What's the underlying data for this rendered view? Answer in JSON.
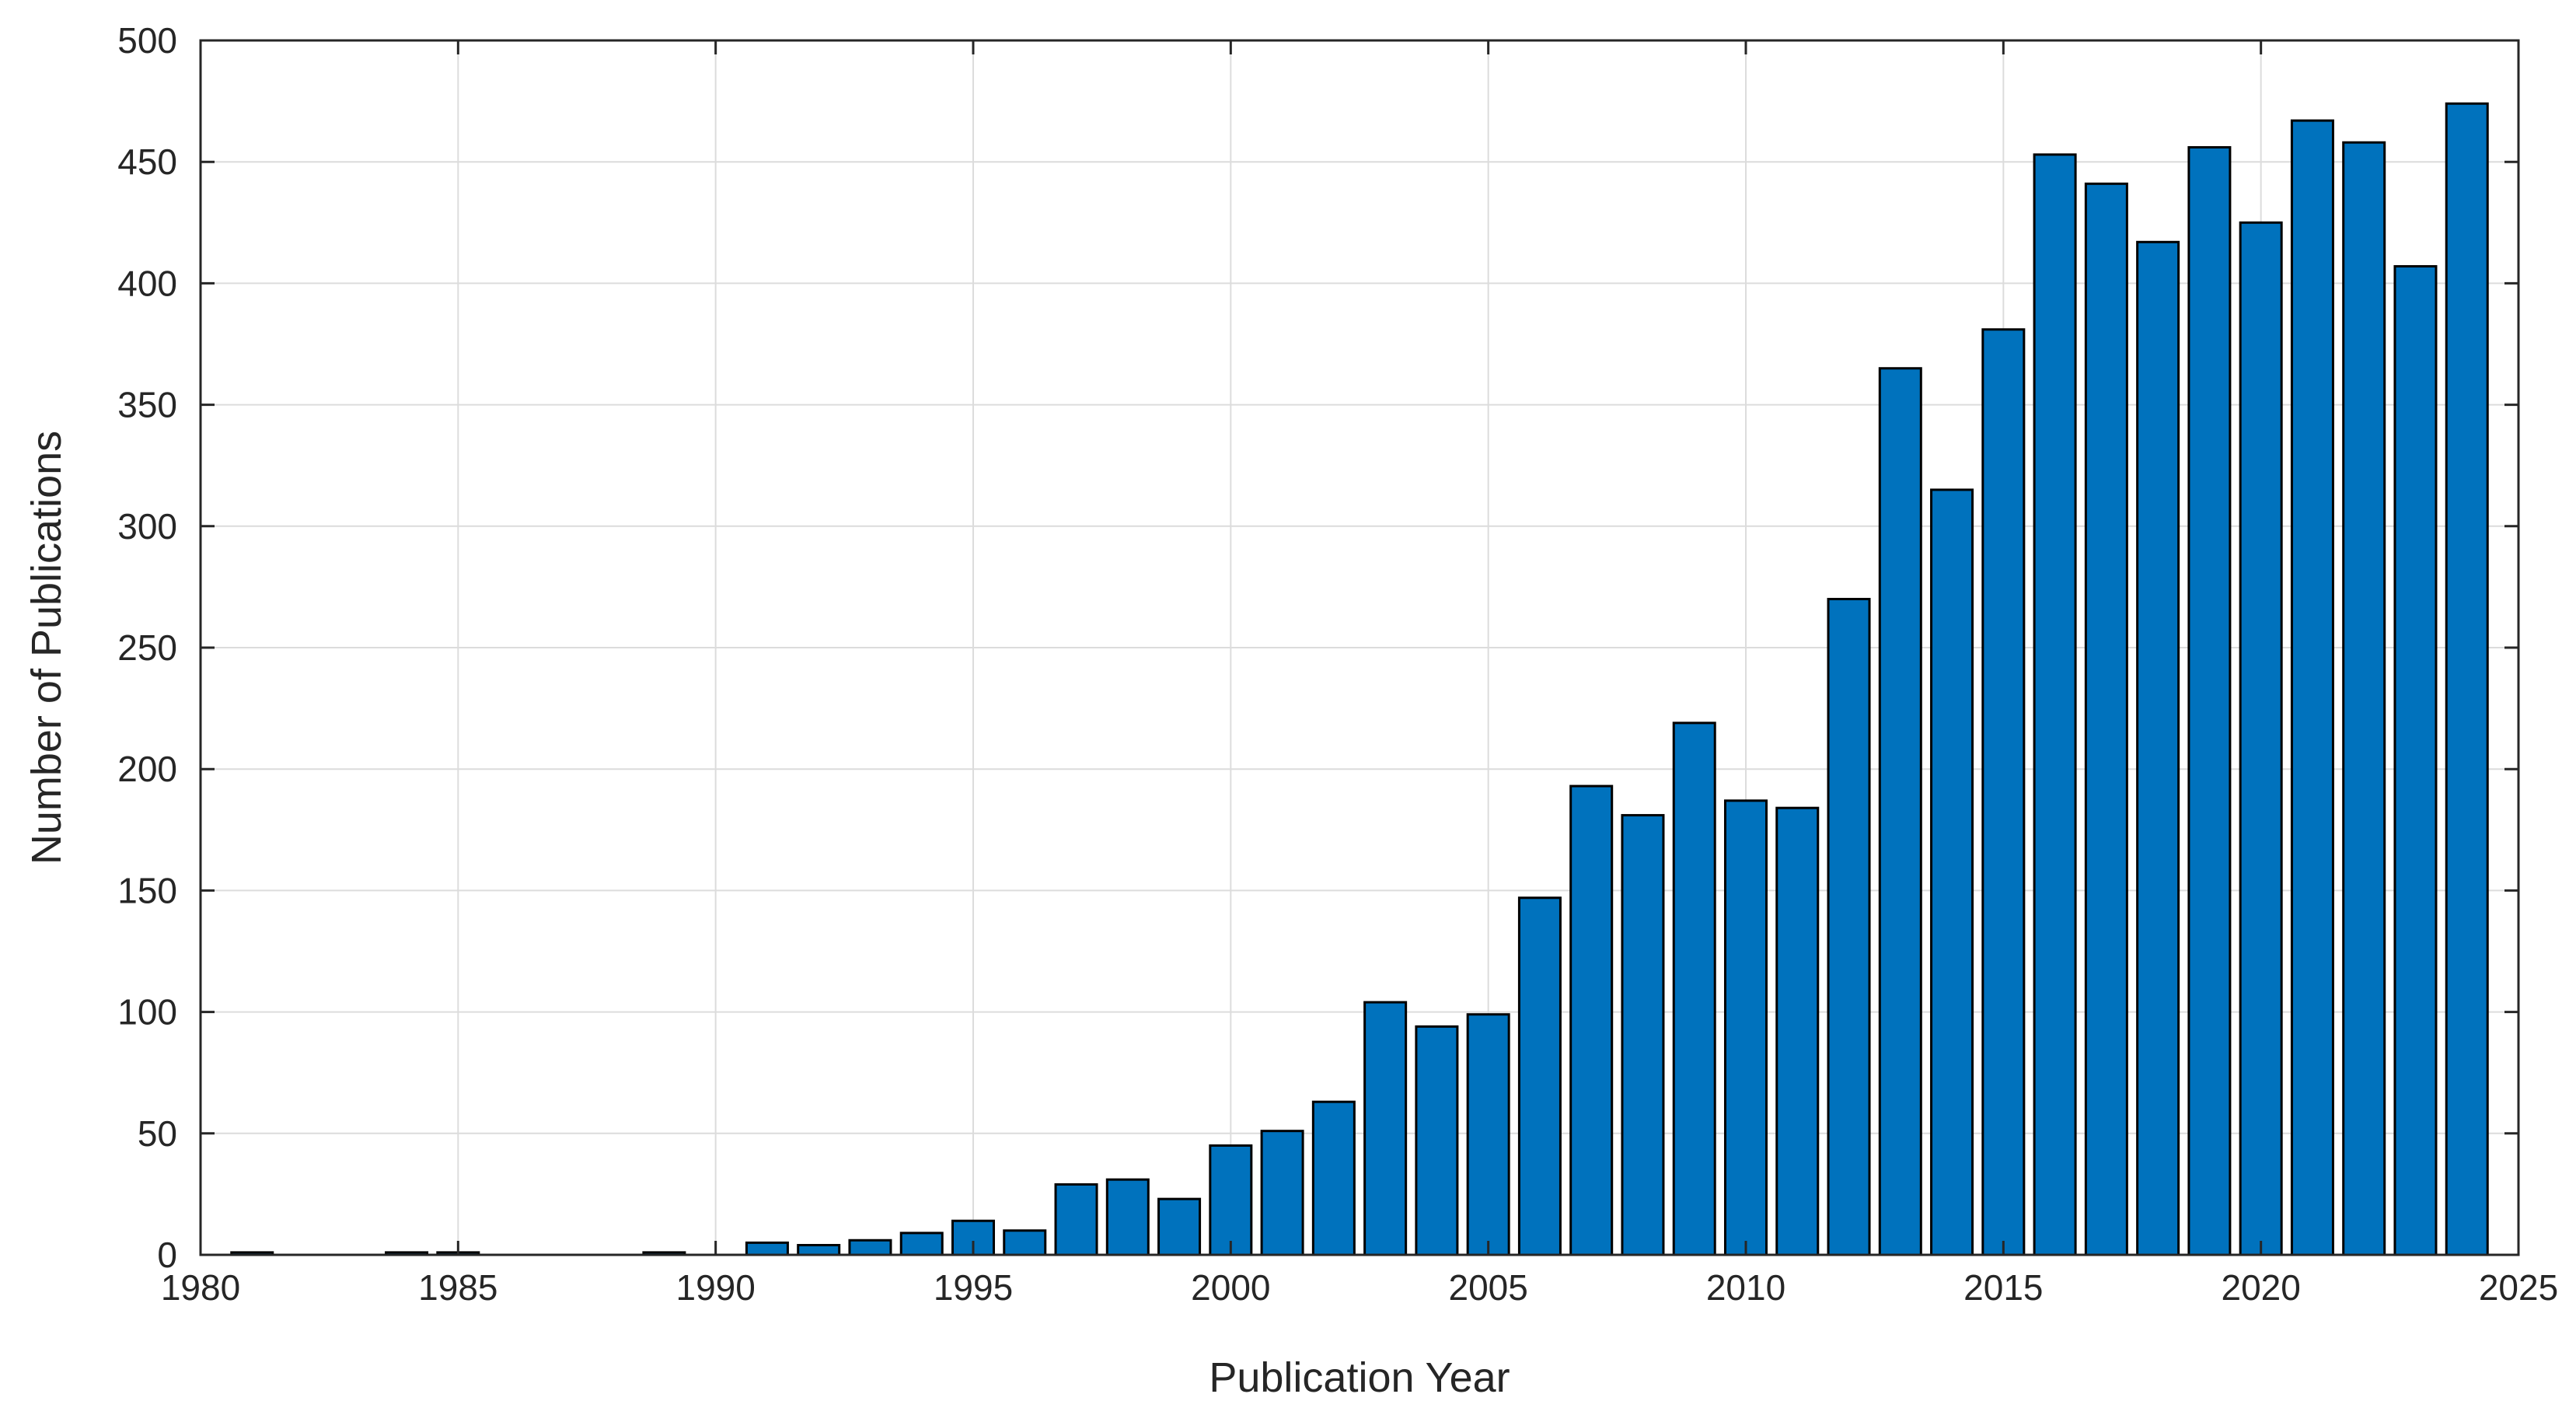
{
  "chart_data": {
    "type": "bar",
    "xlabel": "Publication Year",
    "ylabel": "Number of Publications",
    "xlim": [
      1980,
      2025
    ],
    "ylim": [
      0,
      500
    ],
    "x_ticks": [
      1980,
      1985,
      1990,
      1995,
      2000,
      2005,
      2010,
      2015,
      2020,
      2025
    ],
    "y_ticks": [
      0,
      50,
      100,
      150,
      200,
      250,
      300,
      350,
      400,
      450,
      500
    ],
    "grid": true,
    "bar_color": "#0072BD",
    "bar_edge_color": "#000000",
    "x": [
      1981,
      1984,
      1985,
      1989,
      1991,
      1992,
      1993,
      1994,
      1995,
      1996,
      1997,
      1998,
      1999,
      2000,
      2001,
      2002,
      2003,
      2004,
      2005,
      2006,
      2007,
      2008,
      2009,
      2010,
      2011,
      2012,
      2013,
      2014,
      2015,
      2016,
      2017,
      2018,
      2019,
      2020,
      2021,
      2022,
      2023,
      2024
    ],
    "values": [
      1,
      1,
      1,
      1,
      5,
      4,
      6,
      9,
      14,
      10,
      29,
      31,
      23,
      45,
      51,
      63,
      104,
      94,
      99,
      147,
      193,
      181,
      219,
      187,
      184,
      270,
      365,
      315,
      381,
      453,
      441,
      417,
      456,
      425,
      467,
      458,
      407,
      474
    ]
  }
}
